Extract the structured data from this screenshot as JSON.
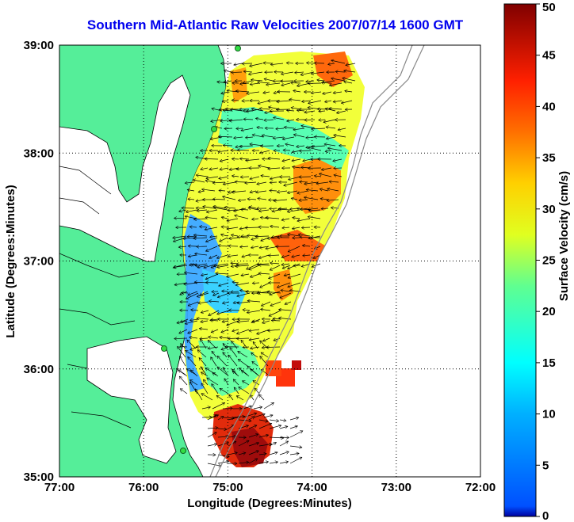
{
  "title": "Southern Mid-Atlantic Raw Velocities 2007/07/14 1600 GMT",
  "x_axis": {
    "label": "Longitude (Degrees:Minutes)",
    "ticks": [
      "77:00",
      "76:00",
      "75:00",
      "74:00",
      "73:00",
      "72:00"
    ],
    "range": [
      -77,
      -72
    ]
  },
  "y_axis": {
    "label": "Latitude (Degrees:Minutes)",
    "ticks": [
      "35:00",
      "36:00",
      "37:00",
      "38:00",
      "39:00"
    ],
    "range": [
      35,
      39
    ]
  },
  "colorbar": {
    "label": "Surface Velocity (cm/s)",
    "ticks": [
      "0",
      "5",
      "10",
      "15",
      "20",
      "25",
      "30",
      "35",
      "40",
      "45",
      "50"
    ],
    "range": [
      0,
      50
    ]
  },
  "colors": {
    "land": "#55ee99",
    "title": "#0000ee",
    "station": "#33dd44"
  },
  "grid": true
}
